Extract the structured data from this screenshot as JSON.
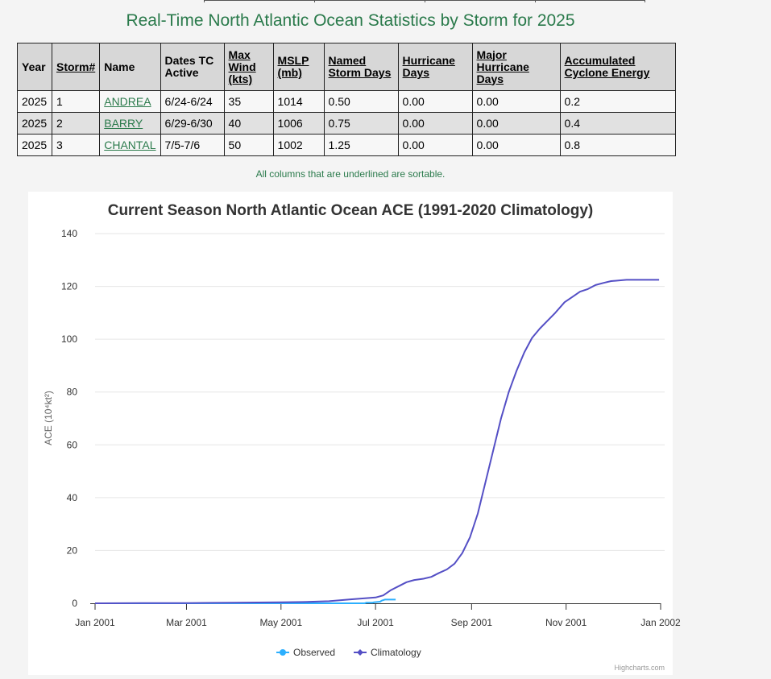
{
  "page": {
    "title": "Real-Time North Atlantic Ocean Statistics by Storm for 2025",
    "note": "All columns that are underlined are sortable."
  },
  "table": {
    "headers": [
      {
        "label": "Year",
        "sortable": false
      },
      {
        "label": "Storm#",
        "sortable": true
      },
      {
        "label": "Name",
        "sortable": false
      },
      {
        "label": "Dates TC Active",
        "sortable": false
      },
      {
        "label": "Max Wind (kts)",
        "sortable": true
      },
      {
        "label": "MSLP (mb)",
        "sortable": true
      },
      {
        "label": "Named Storm Days",
        "sortable": true
      },
      {
        "label": "Hurricane Days",
        "sortable": true
      },
      {
        "label": "Major Hurricane Days",
        "sortable": true
      },
      {
        "label": "Accumulated Cyclone Energy",
        "sortable": true
      }
    ],
    "rows": [
      [
        "2025",
        "1",
        "ANDREA",
        "6/24-6/24",
        "35",
        "1014",
        "0.50",
        "0.00",
        "0.00",
        "0.2"
      ],
      [
        "2025",
        "2",
        "BARRY",
        "6/29-6/30",
        "40",
        "1006",
        "0.75",
        "0.00",
        "0.00",
        "0.4"
      ],
      [
        "2025",
        "3",
        "CHANTAL",
        "7/5-7/6",
        "50",
        "1002",
        "1.25",
        "0.00",
        "0.00",
        "0.8"
      ]
    ]
  },
  "chart_data": {
    "type": "line",
    "title": "Current Season North Atlantic Ocean ACE (1991-2020 Climatology)",
    "ylabel": "ACE (10⁴kt²)",
    "ylim": [
      0,
      140
    ],
    "yticks": [
      0,
      20,
      40,
      60,
      80,
      100,
      120,
      140
    ],
    "xlim": [
      "2001-01-01",
      "2002-01-01"
    ],
    "xticks": [
      {
        "date": "2001-01-01",
        "label": "Jan 2001"
      },
      {
        "date": "2001-03-01",
        "label": "Mar 2001"
      },
      {
        "date": "2001-05-01",
        "label": "May 2001"
      },
      {
        "date": "2001-07-01",
        "label": "Jul 2001"
      },
      {
        "date": "2001-09-01",
        "label": "Sep 2001"
      },
      {
        "date": "2001-11-01",
        "label": "Nov 2001"
      },
      {
        "date": "2002-01-01",
        "label": "Jan 2002"
      }
    ],
    "grid": true,
    "legend": "bottom-center",
    "credit": "Highcharts.com",
    "series": [
      {
        "name": "Observed",
        "color": "#2caffe",
        "points": [
          [
            "2001-01-01",
            0
          ],
          [
            "2001-06-24",
            0
          ],
          [
            "2001-06-25",
            0.2
          ],
          [
            "2001-06-29",
            0.2
          ],
          [
            "2001-06-30",
            0.4
          ],
          [
            "2001-07-04",
            0.6
          ],
          [
            "2001-07-05",
            1.0
          ],
          [
            "2001-07-07",
            1.4
          ],
          [
            "2001-07-14",
            1.4
          ]
        ]
      },
      {
        "name": "Climatology",
        "color": "#544fc5",
        "points": [
          [
            "2001-01-01",
            0
          ],
          [
            "2001-02-01",
            0.1
          ],
          [
            "2001-03-01",
            0.1
          ],
          [
            "2001-04-01",
            0.2
          ],
          [
            "2001-05-01",
            0.4
          ],
          [
            "2001-05-15",
            0.5
          ],
          [
            "2001-06-01",
            0.8
          ],
          [
            "2001-06-15",
            1.5
          ],
          [
            "2001-07-01",
            2.2
          ],
          [
            "2001-07-06",
            3.0
          ],
          [
            "2001-07-11",
            5.0
          ],
          [
            "2001-07-16",
            6.5
          ],
          [
            "2001-07-21",
            8.0
          ],
          [
            "2001-07-26",
            8.8
          ],
          [
            "2001-08-01",
            9.3
          ],
          [
            "2001-08-06",
            10.0
          ],
          [
            "2001-08-11",
            11.5
          ],
          [
            "2001-08-16",
            12.8
          ],
          [
            "2001-08-21",
            15.0
          ],
          [
            "2001-08-26",
            19.0
          ],
          [
            "2001-08-31",
            25.0
          ],
          [
            "2001-09-05",
            34.0
          ],
          [
            "2001-09-10",
            46.0
          ],
          [
            "2001-09-15",
            58.0
          ],
          [
            "2001-09-20",
            70.0
          ],
          [
            "2001-09-25",
            80.0
          ],
          [
            "2001-09-30",
            88.0
          ],
          [
            "2001-10-05",
            95.0
          ],
          [
            "2001-10-10",
            100.5
          ],
          [
            "2001-10-15",
            104.0
          ],
          [
            "2001-10-20",
            107.0
          ],
          [
            "2001-10-25",
            110.0
          ],
          [
            "2001-10-31",
            114.0
          ],
          [
            "2001-11-05",
            116.0
          ],
          [
            "2001-11-10",
            118.0
          ],
          [
            "2001-11-15",
            119.0
          ],
          [
            "2001-11-20",
            120.5
          ],
          [
            "2001-11-25",
            121.3
          ],
          [
            "2001-11-30",
            122.0
          ],
          [
            "2001-12-10",
            122.5
          ],
          [
            "2001-12-20",
            122.5
          ],
          [
            "2001-12-31",
            122.5
          ]
        ]
      }
    ]
  }
}
